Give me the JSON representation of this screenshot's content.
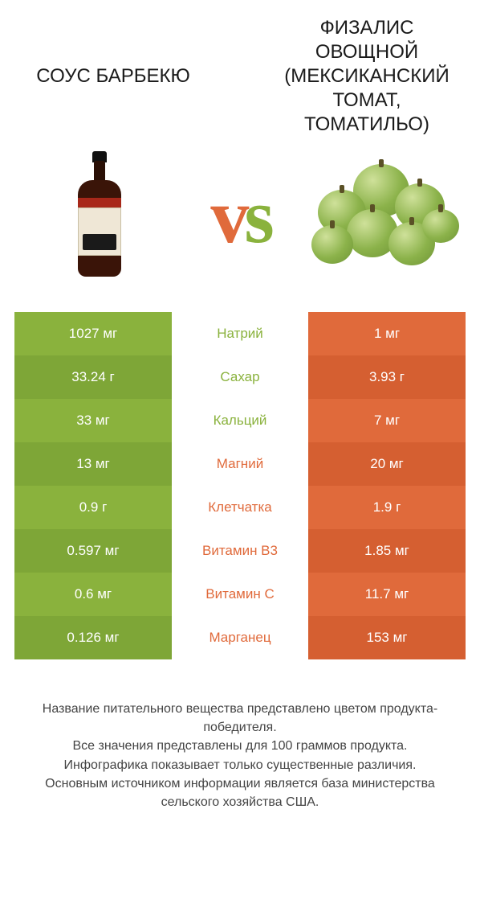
{
  "colors": {
    "green": "#8ab23d",
    "green_alt": "#7ea637",
    "orange": "#e06a3b",
    "orange_alt": "#d55f31",
    "text": "#333333",
    "bg": "#ffffff"
  },
  "left": {
    "title": "СОУС БАРБЕКЮ"
  },
  "right": {
    "title": "ФИЗАЛИС ОВОЩНОЙ (МЕКСИКАНСКИЙ ТОМАТ, ТОМАТИЛЬО)"
  },
  "vs": "vs",
  "rows": [
    {
      "label": "Натрий",
      "left": "1027 мг",
      "right": "1 мг",
      "winner": "left"
    },
    {
      "label": "Сахар",
      "left": "33.24 г",
      "right": "3.93 г",
      "winner": "left"
    },
    {
      "label": "Кальций",
      "left": "33 мг",
      "right": "7 мг",
      "winner": "left"
    },
    {
      "label": "Магний",
      "left": "13 мг",
      "right": "20 мг",
      "winner": "right"
    },
    {
      "label": "Клетчатка",
      "left": "0.9 г",
      "right": "1.9 г",
      "winner": "right"
    },
    {
      "label": "Витамин B3",
      "left": "0.597 мг",
      "right": "1.85 мг",
      "winner": "right"
    },
    {
      "label": "Витамин C",
      "left": "0.6 мг",
      "right": "11.7 мг",
      "winner": "right"
    },
    {
      "label": "Марганец",
      "left": "0.126 мг",
      "right": "153 мг",
      "winner": "right"
    }
  ],
  "footer": {
    "l1": "Название питательного вещества представлено цветом продукта-победителя.",
    "l2": "Все значения представлены для 100 граммов продукта.",
    "l3": "Инфографика показывает только существенные различия.",
    "l4": "Основным источником информации является база министерства сельского хозяйства США."
  }
}
